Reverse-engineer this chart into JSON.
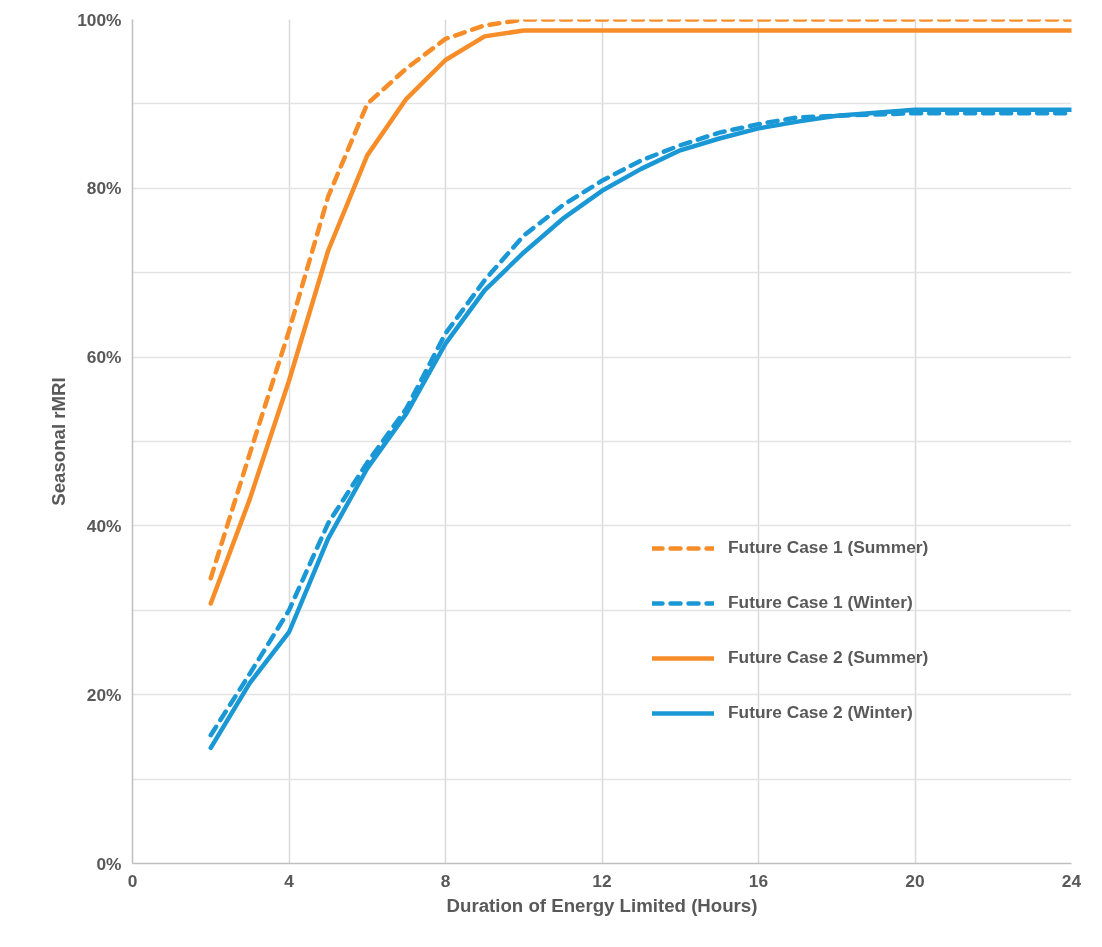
{
  "chart_data": {
    "type": "line",
    "xlabel": "Duration of Energy Limited (Hours)",
    "ylabel": "Seasonal rMRI",
    "x": [
      2,
      3,
      4,
      5,
      6,
      7,
      8,
      9,
      10,
      11,
      12,
      13,
      14,
      15,
      16,
      17,
      18,
      20,
      22,
      24
    ],
    "series": [
      {
        "name": "Future Case 1 (Summer)",
        "color": "#f78d28",
        "line_style": "dashed",
        "values": [
          33.8,
          48.6,
          63.1,
          79,
          90,
          94.2,
          97.7,
          99.3,
          100,
          100,
          100,
          100,
          100,
          100,
          100,
          100,
          100,
          100,
          100,
          100
        ]
      },
      {
        "name": "Future Case 1 (Winter)",
        "color": "#1a98d5",
        "line_style": "dashed",
        "values": [
          15.2,
          22.5,
          30,
          40.3,
          47.5,
          53.9,
          62.8,
          69.1,
          74.4,
          78,
          80.9,
          83.3,
          85.1,
          86.6,
          87.6,
          88.4,
          88.6,
          88.9,
          88.9,
          88.9
        ]
      },
      {
        "name": "Future Case 2 (Summer)",
        "color": "#f78d28",
        "line_style": "solid",
        "values": [
          30.8,
          43.2,
          57.2,
          72.6,
          83.9,
          90.6,
          95.2,
          98,
          98.7,
          98.7,
          98.7,
          98.7,
          98.7,
          98.7,
          98.7,
          98.7,
          98.7,
          98.7,
          98.7,
          98.7
        ]
      },
      {
        "name": "Future Case 2 (Winter)",
        "color": "#1a98d5",
        "line_style": "solid",
        "values": [
          13.7,
          21.4,
          27.4,
          38.5,
          46.8,
          53.3,
          61.6,
          67.9,
          72.4,
          76.4,
          79.7,
          82.3,
          84.5,
          85.9,
          87.1,
          87.9,
          88.6,
          89.3,
          89.3,
          89.3
        ]
      }
    ],
    "xlim": [
      0,
      24
    ],
    "xticks": [
      0,
      4,
      8,
      12,
      16,
      20,
      24
    ],
    "ylim": [
      0,
      100
    ],
    "yticks": [
      {
        "value": 0,
        "label": "0%"
      },
      {
        "value": 10,
        "label": null
      },
      {
        "value": 20,
        "label": "20%"
      },
      {
        "value": 30,
        "label": null
      },
      {
        "value": 40,
        "label": "40%"
      },
      {
        "value": 50,
        "label": null
      },
      {
        "value": 60,
        "label": "60%"
      },
      {
        "value": 70,
        "label": null
      },
      {
        "value": 80,
        "label": "80%"
      },
      {
        "value": 90,
        "label": null
      },
      {
        "value": 100,
        "label": "100%"
      }
    ],
    "grid": true,
    "legend": "bottom right",
    "marker": "none"
  }
}
